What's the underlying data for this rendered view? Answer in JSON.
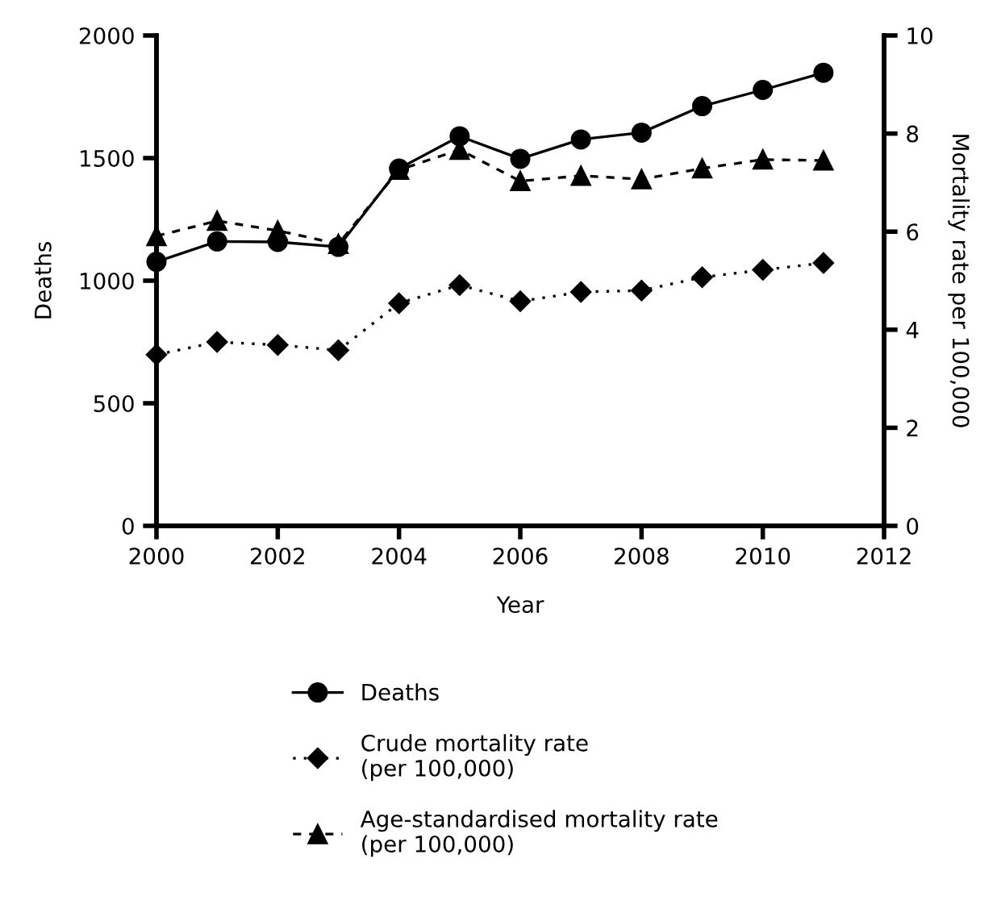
{
  "chart_data": {
    "type": "line",
    "xlabel": "Year",
    "ylabel": "Deaths",
    "y2label": "Mortality rate per 100,000",
    "x": [
      2000,
      2001,
      2002,
      2003,
      2004,
      2005,
      2006,
      2007,
      2008,
      2009,
      2010,
      2011
    ],
    "series": [
      {
        "name": "Deaths",
        "color": "#000000",
        "marker": "circle",
        "line_style": "solid",
        "values": [
          1077,
          1160,
          1158,
          1138,
          1457,
          1589,
          1497,
          1576,
          1604,
          1712,
          1778,
          1848
        ]
      },
      {
        "name": "Crude mortality rate\n(per 100,000)",
        "color": "#000000",
        "marker": "diamond",
        "line_style": "dotted",
        "axis": "y2",
        "values": [
          3.49,
          3.75,
          3.69,
          3.58,
          4.54,
          4.91,
          4.58,
          4.77,
          4.8,
          5.07,
          5.22,
          5.36
        ]
      },
      {
        "name": "Age-standardised mortality rate\n(per 100,000)",
        "color": "#000000",
        "marker": "triangle",
        "line_style": "dashed",
        "axis": "y2",
        "values": [
          5.91,
          6.22,
          6.02,
          5.75,
          7.26,
          7.67,
          7.03,
          7.14,
          7.07,
          7.29,
          7.47,
          7.45
        ]
      }
    ],
    "xlim": [
      2000,
      2012
    ],
    "xticks": [
      2000,
      2002,
      2004,
      2006,
      2008,
      2010,
      2012
    ],
    "ylim": [
      0,
      2000
    ],
    "yticks": [
      0,
      500,
      1000,
      1500,
      2000
    ],
    "y2lim": [
      0,
      10
    ],
    "y2ticks": [
      0,
      2,
      4,
      6,
      8,
      10
    ],
    "grid": false,
    "legend": "bottom"
  }
}
